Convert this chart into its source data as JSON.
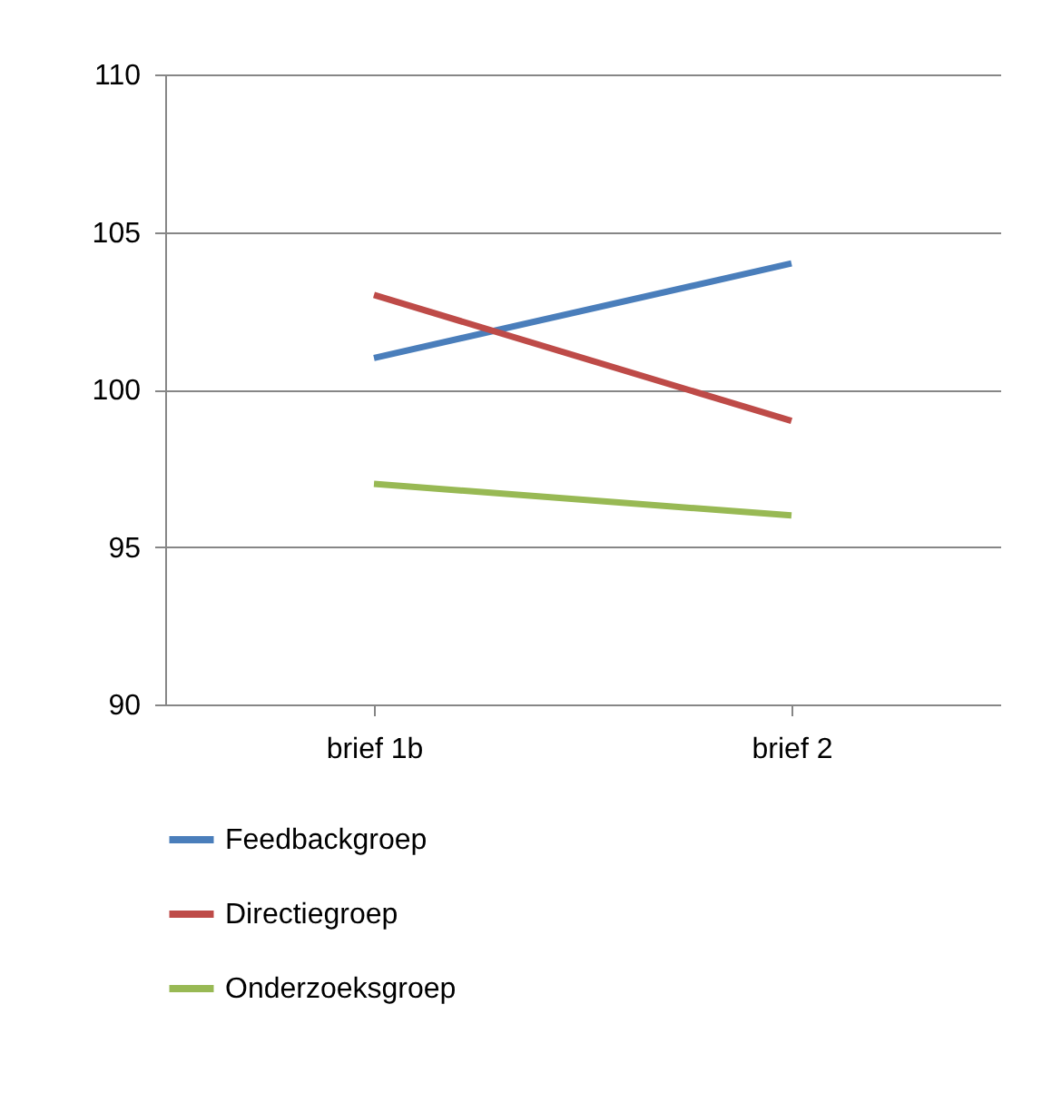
{
  "chart_data": {
    "type": "line",
    "categories": [
      "brief 1b",
      "brief 2"
    ],
    "series": [
      {
        "name": "Feedbackgroep",
        "color": "#4a7ebb",
        "values": [
          101,
          104
        ]
      },
      {
        "name": "Directiegroep",
        "color": "#be4b48",
        "values": [
          103,
          99
        ]
      },
      {
        "name": "Onderzoeksgroep",
        "color": "#98b954",
        "values": [
          97,
          96
        ]
      }
    ],
    "ylim": [
      90,
      110
    ],
    "yticks": [
      90,
      95,
      100,
      105,
      110
    ],
    "grid": "y",
    "legend": "bottom",
    "marker": "none",
    "line_style": "solid"
  }
}
